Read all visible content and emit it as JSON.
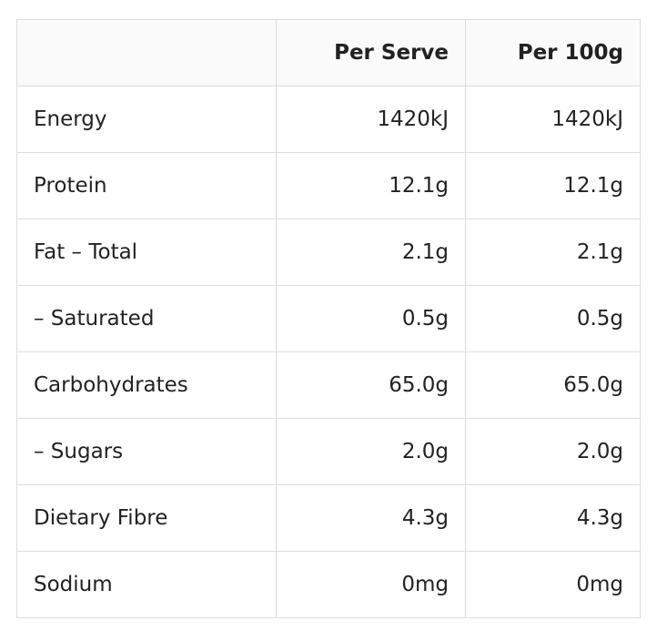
{
  "table": {
    "header": [
      "",
      "Per Serve",
      "Per 100g"
    ],
    "rows": [
      [
        "Energy",
        "1420kJ",
        "1420kJ"
      ],
      [
        "Protein",
        "12.1g",
        "12.1g"
      ],
      [
        "Fat – Total",
        "2.1g",
        "2.1g"
      ],
      [
        "– Saturated",
        "0.5g",
        "0.5g"
      ],
      [
        "Carbohydrates",
        "65.0g",
        "65.0g"
      ],
      [
        "– Sugars",
        "2.0g",
        "2.0g"
      ],
      [
        "Dietary Fibre",
        "4.3g",
        "4.3g"
      ],
      [
        "Sodium",
        "0mg",
        "0mg"
      ]
    ]
  }
}
